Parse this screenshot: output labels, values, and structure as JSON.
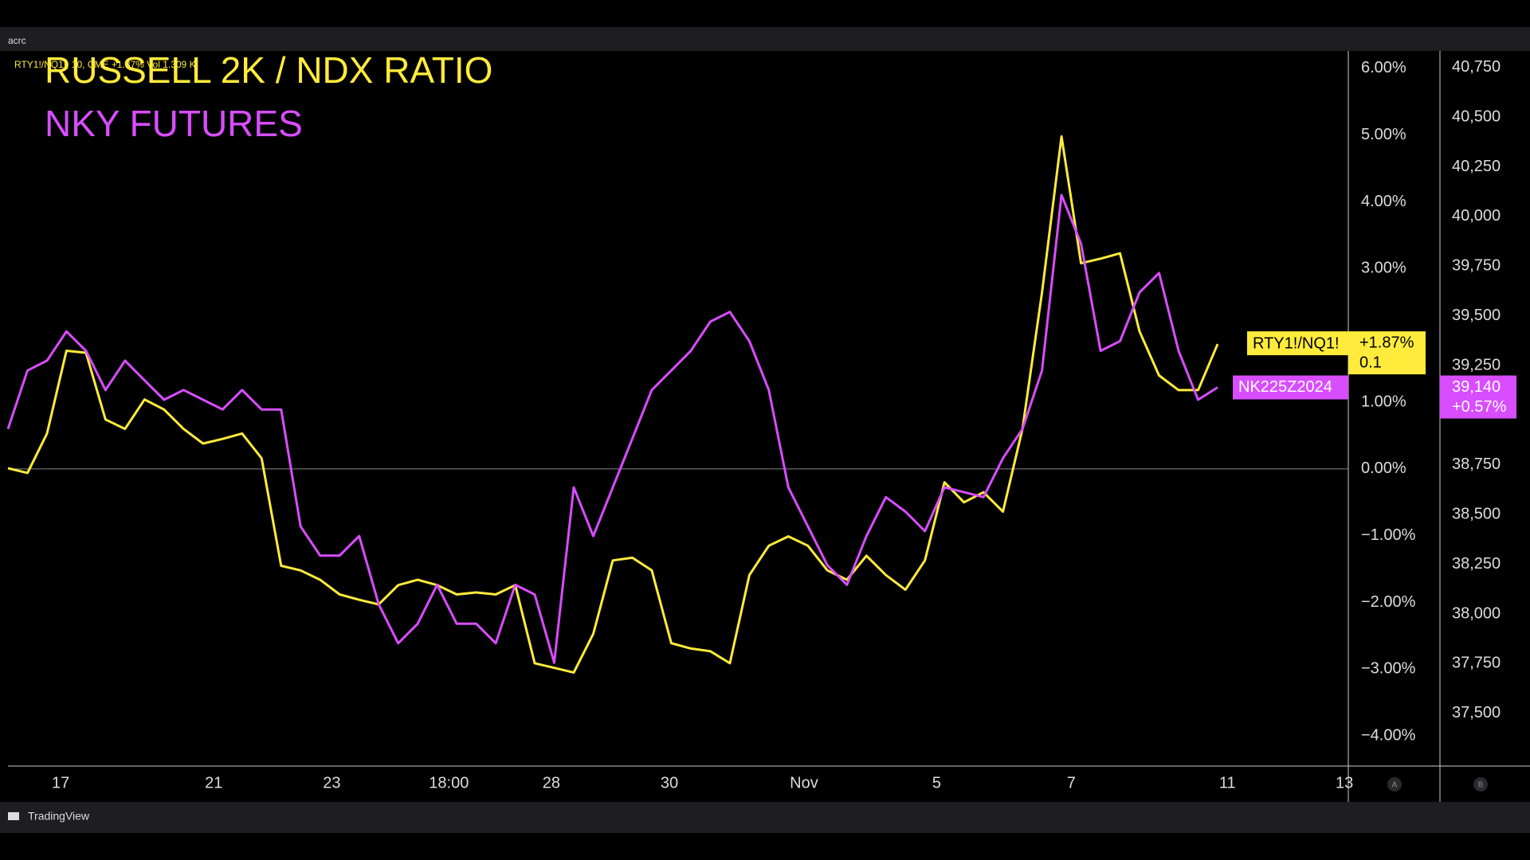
{
  "header": {
    "account": "acrc",
    "symbol_line": "RTY1!/NQ1!, 10, CME +1.87% Vol 1.309 K"
  },
  "footer": {
    "brand": "TradingView"
  },
  "chart_data": {
    "type": "line",
    "annotations": [
      {
        "text": "RUSSELL 2K / NDX RATIO",
        "color": "#ffeb3b"
      },
      {
        "text": "NKY FUTURES",
        "color": "#d84dff"
      }
    ],
    "x": [
      0,
      2,
      4,
      6,
      8,
      10,
      12,
      14,
      16,
      18,
      20,
      22,
      24,
      26,
      28,
      30,
      32,
      34,
      36,
      38,
      40,
      42,
      44,
      46,
      48,
      50,
      52,
      54,
      56,
      58,
      60,
      62,
      64,
      66,
      68,
      70,
      72,
      74,
      76,
      78,
      80,
      82,
      84,
      86,
      88,
      90,
      92,
      94,
      96,
      98,
      100,
      102,
      104,
      106,
      108,
      110,
      112,
      114,
      116,
      118,
      120,
      122,
      124
    ],
    "xlim": [
      0,
      137.4
    ],
    "xticks": [
      {
        "value": 5.4,
        "label": "17"
      },
      {
        "value": 21.1,
        "label": "21"
      },
      {
        "value": 33.2,
        "label": "23"
      },
      {
        "value": 45.2,
        "label": "18:00"
      },
      {
        "value": 55.7,
        "label": "28"
      },
      {
        "value": 67.8,
        "label": "30"
      },
      {
        "value": 81.6,
        "label": "Nov"
      },
      {
        "value": 95.2,
        "label": "5"
      },
      {
        "value": 109,
        "label": "7"
      },
      {
        "value": 125,
        "label": "11"
      },
      {
        "value": 137,
        "label": "13"
      }
    ],
    "ylim": [
      -4.45,
      6.26
    ],
    "yticks": [
      {
        "value": 6,
        "label": "6.00%"
      },
      {
        "value": 5,
        "label": "5.00%"
      },
      {
        "value": 4,
        "label": "4.00%"
      },
      {
        "value": 3,
        "label": "3.00%"
      },
      {
        "value": 1,
        "label": "1.00%"
      },
      {
        "value": 0,
        "label": "0.00%"
      },
      {
        "value": -1,
        "label": "−1.00%"
      },
      {
        "value": -2,
        "label": "−2.00%"
      },
      {
        "value": -3,
        "label": "−3.00%"
      },
      {
        "value": -4,
        "label": "−4.00%"
      }
    ],
    "y2lim": [
      37235,
      40833
    ],
    "y2ticks": [
      {
        "value": 40750,
        "label": "40,750"
      },
      {
        "value": 40500,
        "label": "40,500"
      },
      {
        "value": 40250,
        "label": "40,250"
      },
      {
        "value": 40000,
        "label": "40,000"
      },
      {
        "value": 39750,
        "label": "39,750"
      },
      {
        "value": 39500,
        "label": "39,500"
      },
      {
        "value": 39250,
        "label": "39,250"
      },
      {
        "value": 38750,
        "label": "38,750"
      },
      {
        "value": 38500,
        "label": "38,500"
      },
      {
        "value": 38250,
        "label": "38,250"
      },
      {
        "value": 38000,
        "label": "38,000"
      },
      {
        "value": 37750,
        "label": "37,750"
      },
      {
        "value": 37500,
        "label": "37,500"
      }
    ],
    "axis_badges": [
      "A",
      "B"
    ],
    "series": [
      {
        "name": "RTY1!/NQ1!",
        "color": "#ffeb3b",
        "axis": "y",
        "last_change": "+1.87%",
        "last_extra": "0.1",
        "values": [
          0.01,
          -0.06,
          0.53,
          1.77,
          1.74,
          0.74,
          0.6,
          1.04,
          0.89,
          0.6,
          0.38,
          0.45,
          0.53,
          0.16,
          -1.45,
          -1.52,
          -1.66,
          -1.88,
          -1.96,
          -2.03,
          -1.74,
          -1.66,
          -1.74,
          -1.88,
          -1.85,
          -1.88,
          -1.74,
          -2.91,
          -2.98,
          -3.05,
          -2.47,
          -1.37,
          -1.33,
          -1.52,
          -2.61,
          -2.69,
          -2.73,
          -2.91,
          -1.59,
          -1.15,
          -1.01,
          -1.15,
          -1.52,
          -1.66,
          -1.3,
          -1.59,
          -1.81,
          -1.37,
          -0.2,
          -0.5,
          -0.35,
          -0.64,
          0.6,
          2.64,
          4.98,
          3.08,
          3.15,
          3.23,
          2.06,
          1.4,
          1.18,
          1.18,
          1.87
        ]
      },
      {
        "name": "NK225Z2024",
        "color": "#d84dff",
        "axis": "y2",
        "last_price": "39,140",
        "last_change": "+0.57%",
        "values": [
          38931,
          39225,
          39275,
          39422,
          39324,
          39127,
          39275,
          39176,
          39078,
          39127,
          39078,
          39029,
          39127,
          39029,
          39029,
          38441,
          38294,
          38294,
          38392,
          38049,
          37853,
          37951,
          38147,
          37951,
          37951,
          37853,
          38147,
          38098,
          37755,
          38637,
          38392,
          38637,
          38882,
          39127,
          39225,
          39324,
          39471,
          39520,
          39373,
          39127,
          38637,
          38441,
          38245,
          38147,
          38392,
          38588,
          38515,
          38417,
          38637,
          38613,
          38588,
          38784,
          38931,
          39225,
          40108,
          39863,
          39324,
          39373,
          39618,
          39716,
          39324,
          39078,
          39140
        ]
      }
    ]
  }
}
